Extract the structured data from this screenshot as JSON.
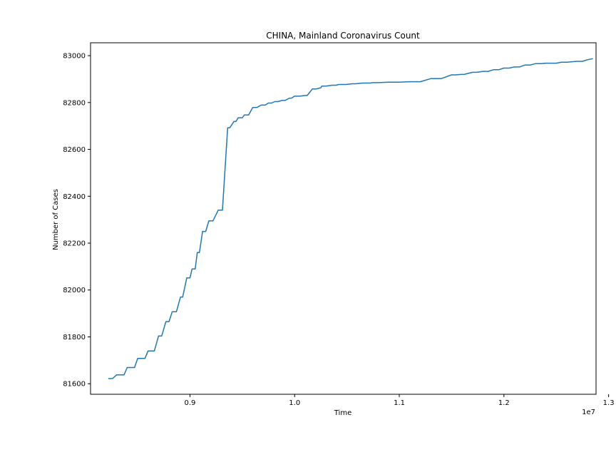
{
  "chart_data": {
    "type": "line",
    "title": "CHINA, Mainland Coronavirus Count",
    "xlabel": "Time",
    "ylabel": "Number of Cases",
    "x_offset_label": "1e7",
    "xlim": [
      8050000,
      12880000
    ],
    "ylim": [
      81555,
      83055
    ],
    "x_ticks": [
      9000000,
      10000000,
      11000000,
      12000000,
      13000000
    ],
    "x_tick_labels": [
      "0.9",
      "1.0",
      "1.1",
      "1.2",
      "1.3"
    ],
    "y_ticks": [
      81600,
      81800,
      82000,
      82200,
      82400,
      82600,
      82800,
      83000
    ],
    "y_tick_labels": [
      "81600",
      "81800",
      "82000",
      "82200",
      "82400",
      "82600",
      "82800",
      "83000"
    ],
    "grid": false,
    "line_color": "#1f77b4",
    "series": [
      {
        "x": [
          8220000,
          8260000,
          8300000,
          8370000,
          8400000,
          8470000,
          8500000,
          8570000,
          8600000,
          8660000,
          8700000,
          8730000,
          8770000,
          8800000,
          8830000,
          8870000,
          8910000,
          8930000,
          8970000,
          9000000,
          9020000,
          9050000,
          9070000,
          9090000,
          9120000,
          9150000,
          9180000,
          9220000,
          9270000,
          9310000,
          9360000,
          9380000,
          9420000,
          9440000,
          9460000,
          9500000,
          9520000,
          9560000,
          9600000,
          9640000,
          9680000,
          9720000,
          9750000,
          9780000,
          9810000,
          9840000,
          9880000,
          9910000,
          9950000,
          9970000,
          10000000,
          10050000,
          10100000,
          10120000,
          10170000,
          10210000,
          10240000,
          10250000,
          10260000,
          10300000,
          10360000,
          10400000,
          10420000,
          10490000,
          10550000,
          10580000,
          10650000,
          10720000,
          10750000,
          10800000,
          10900000,
          11000000,
          11100000,
          11200000,
          11300000,
          11400000,
          11500000,
          11540000,
          11590000,
          11620000,
          11700000,
          11740000,
          11800000,
          11850000,
          11900000,
          11950000,
          12000000,
          12050000,
          12100000,
          12150000,
          12200000,
          12250000,
          12300000,
          12350000,
          12400000,
          12500000,
          12550000,
          12600000,
          12700000,
          12750000,
          12800000,
          12850000
        ],
        "y": [
          81622,
          81622,
          81638,
          81638,
          81669,
          81669,
          81708,
          81708,
          81740,
          81740,
          81804,
          81804,
          81865,
          81865,
          81907,
          81907,
          81970,
          81970,
          82052,
          82052,
          82090,
          82090,
          82160,
          82160,
          82250,
          82250,
          82295,
          82295,
          82341,
          82341,
          82692,
          82692,
          82719,
          82719,
          82735,
          82735,
          82747,
          82747,
          82779,
          82779,
          82789,
          82789,
          82798,
          82798,
          82804,
          82804,
          82809,
          82809,
          82819,
          82819,
          82827,
          82827,
          82830,
          82830,
          82858,
          82858,
          82862,
          82862,
          82870,
          82870,
          82874,
          82874,
          82877,
          82877,
          82880,
          82880,
          82883,
          82883,
          82885,
          82885,
          82887,
          82887,
          82889,
          82889,
          82902,
          82902,
          82918,
          82918,
          82920,
          82920,
          82929,
          82929,
          82933,
          82933,
          82940,
          82940,
          82947,
          82947,
          82952,
          82952,
          82960,
          82960,
          82966,
          82966,
          82968,
          82968,
          82972,
          82972,
          82976,
          82976,
          82983,
          82987
        ]
      }
    ]
  }
}
